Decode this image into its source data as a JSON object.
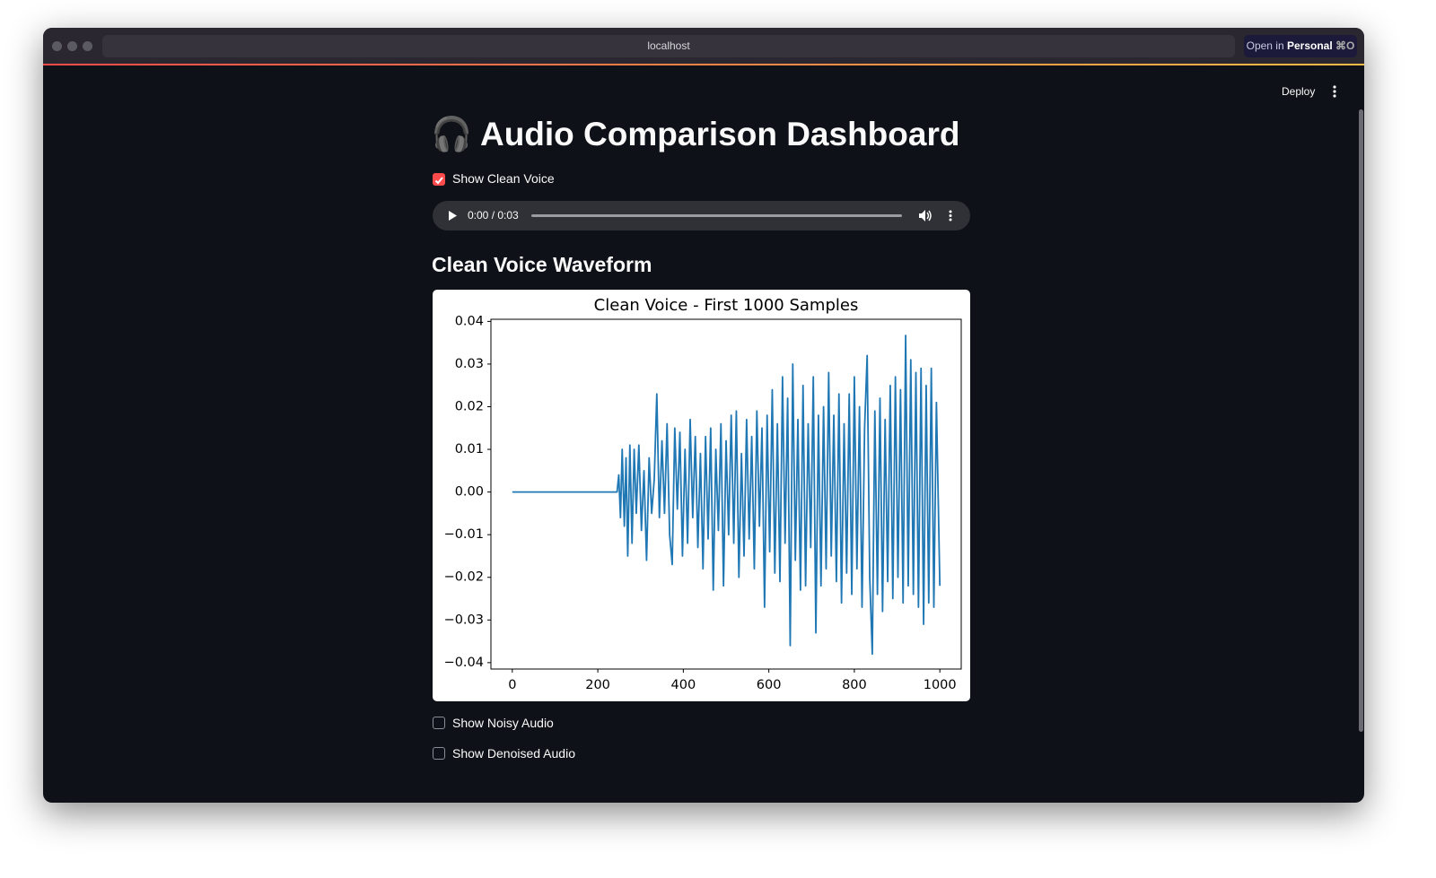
{
  "browser": {
    "url": "localhost",
    "open_in": "Open in",
    "profile": "Personal",
    "shortcut": "⌘O"
  },
  "app": {
    "deploy": "Deploy",
    "title": "🎧 Audio Comparison Dashboard",
    "checkboxes": [
      {
        "label": "Show Clean Voice",
        "checked": true
      },
      {
        "label": "Show Noisy Audio",
        "checked": false
      },
      {
        "label": "Show Denoised Audio",
        "checked": false
      }
    ],
    "audio": {
      "time": "0:00 / 0:03"
    },
    "section_title": "Clean Voice Waveform"
  },
  "chart_data": {
    "type": "line",
    "title": "Clean Voice - First 1000 Samples",
    "color": "#1f77b4",
    "x": [
      0,
      245,
      249,
      253,
      257,
      262,
      266,
      270,
      275,
      280,
      285,
      290,
      296,
      302,
      308,
      314,
      320,
      326,
      332,
      338,
      344,
      350,
      356,
      362,
      368,
      374,
      380,
      386,
      392,
      398,
      404,
      410,
      416,
      422,
      428,
      434,
      440,
      446,
      452,
      458,
      464,
      470,
      476,
      482,
      488,
      494,
      500,
      506,
      512,
      518,
      524,
      530,
      536,
      542,
      548,
      554,
      560,
      566,
      572,
      578,
      584,
      590,
      596,
      602,
      608,
      614,
      620,
      626,
      632,
      638,
      644,
      650,
      656,
      662,
      668,
      674,
      680,
      686,
      692,
      698,
      704,
      710,
      716,
      722,
      728,
      734,
      740,
      746,
      752,
      758,
      764,
      770,
      776,
      782,
      788,
      794,
      800,
      806,
      812,
      818,
      824,
      830,
      836,
      842,
      848,
      854,
      860,
      866,
      872,
      878,
      884,
      890,
      896,
      902,
      908,
      914,
      920,
      926,
      932,
      938,
      944,
      950,
      956,
      962,
      968,
      974,
      980,
      986,
      992,
      1000
    ],
    "values": [
      0,
      0,
      0.004,
      -0.006,
      0.01,
      -0.008,
      0.008,
      -0.015,
      0.011,
      -0.012,
      0.01,
      -0.005,
      0.011,
      -0.009,
      0.005,
      -0.016,
      0.008,
      -0.005,
      0.003,
      0.023,
      -0.006,
      0.012,
      -0.005,
      0.016,
      -0.01,
      -0.017,
      0.015,
      -0.004,
      0.014,
      -0.015,
      0.01,
      -0.012,
      0.017,
      -0.006,
      0.013,
      -0.013,
      0.009,
      -0.018,
      0.013,
      -0.011,
      0.015,
      -0.023,
      0.01,
      -0.009,
      0.016,
      -0.022,
      0.012,
      -0.01,
      0.018,
      -0.012,
      0.019,
      -0.02,
      0.009,
      -0.015,
      0.017,
      -0.011,
      0.013,
      -0.018,
      0.019,
      -0.008,
      0.015,
      -0.027,
      0.018,
      -0.014,
      0.024,
      -0.019,
      0.016,
      -0.021,
      0.027,
      -0.012,
      0.022,
      -0.036,
      0.03,
      -0.016,
      0.017,
      -0.023,
      0.025,
      -0.022,
      0.016,
      -0.013,
      0.027,
      -0.033,
      0.018,
      -0.022,
      0.02,
      -0.018,
      0.028,
      -0.015,
      0.018,
      -0.021,
      0.023,
      -0.026,
      0.016,
      -0.019,
      0.023,
      -0.024,
      0.027,
      -0.018,
      0.02,
      -0.027,
      0.015,
      0.032,
      -0.02,
      -0.038,
      0.019,
      -0.024,
      0.022,
      -0.028,
      0.017,
      -0.021,
      0.025,
      -0.025,
      0.027,
      -0.02,
      0.024,
      -0.026,
      0.0367,
      -0.022,
      0.031,
      -0.024,
      0.028,
      -0.027,
      0.029,
      -0.031,
      0.025,
      -0.026,
      0.029,
      -0.027,
      0.021,
      -0.022
    ],
    "xlim": [
      -50,
      1050
    ],
    "xticks": [
      0,
      200,
      400,
      600,
      800,
      1000
    ],
    "ylim": [
      -0.0415,
      0.0405
    ],
    "yticks": [
      {
        "value": -0.04,
        "label": "−0.04"
      },
      {
        "value": -0.03,
        "label": "−0.03"
      },
      {
        "value": -0.02,
        "label": "−0.02"
      },
      {
        "value": -0.01,
        "label": "−0.01"
      },
      {
        "value": 0,
        "label": "0.00"
      },
      0.01,
      0.02,
      0.03,
      0.04
    ]
  }
}
